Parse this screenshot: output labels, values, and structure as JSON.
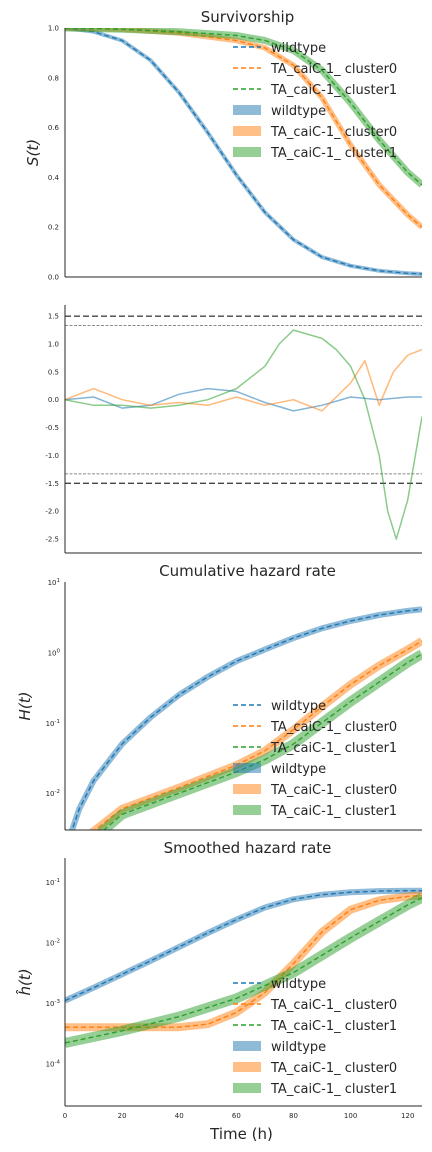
{
  "colors": {
    "wildtype": "#1f77b4",
    "cluster0": "#ff7f0e",
    "cluster1": "#2ca02c",
    "ref_line": "#555555"
  },
  "legend_labels": [
    "wildtype",
    "TA_caiC-1_ cluster0",
    "TA_caiC-1_ cluster1"
  ],
  "chart_data": [
    {
      "type": "line",
      "title": "Survivorship",
      "ylabel": "S(t)",
      "xlim": [
        0,
        125
      ],
      "ylim": [
        0.0,
        1.0
      ],
      "yticks": [
        "0.0",
        "0.2",
        "0.4",
        "0.6",
        "0.8",
        "1.0"
      ],
      "legend": "top-right",
      "series": [
        {
          "name": "wildtype",
          "x": [
            0,
            10,
            20,
            30,
            40,
            50,
            60,
            70,
            80,
            90,
            100,
            110,
            120,
            125
          ],
          "y": [
            1.0,
            0.985,
            0.95,
            0.87,
            0.74,
            0.58,
            0.41,
            0.26,
            0.15,
            0.08,
            0.045,
            0.025,
            0.015,
            0.012
          ]
        },
        {
          "name": "TA_caiC-1_ cluster0",
          "x": [
            0,
            20,
            40,
            60,
            70,
            80,
            90,
            100,
            110,
            120,
            125
          ],
          "y": [
            1.0,
            0.995,
            0.98,
            0.95,
            0.92,
            0.85,
            0.72,
            0.53,
            0.37,
            0.25,
            0.2
          ]
        },
        {
          "name": "TA_caiC-1_ cluster1",
          "x": [
            0,
            20,
            40,
            60,
            70,
            80,
            90,
            100,
            110,
            120,
            125
          ],
          "y": [
            1.0,
            0.995,
            0.985,
            0.97,
            0.95,
            0.91,
            0.83,
            0.7,
            0.55,
            0.42,
            0.37
          ]
        }
      ]
    },
    {
      "type": "line",
      "title": "",
      "ylabel": "",
      "xlim": [
        0,
        125
      ],
      "ylim": [
        -2.75,
        1.7
      ],
      "yticks": [
        "-2.5",
        "-2.0",
        "-1.5",
        "-1.0",
        "-0.5",
        "0.0",
        "0.5",
        "1.0",
        "1.5"
      ],
      "reference_lines": [
        1.5,
        1.33,
        -1.33,
        -1.5
      ],
      "series": [
        {
          "name": "wildtype",
          "x": [
            0,
            10,
            20,
            30,
            40,
            50,
            60,
            70,
            80,
            90,
            100,
            110,
            120,
            125
          ],
          "y": [
            0.0,
            0.05,
            -0.15,
            -0.1,
            0.1,
            0.2,
            0.15,
            -0.05,
            -0.2,
            -0.1,
            0.05,
            0.0,
            0.05,
            0.05
          ]
        },
        {
          "name": "TA_caiC-1_ cluster0",
          "x": [
            0,
            10,
            20,
            30,
            40,
            50,
            60,
            70,
            80,
            90,
            100,
            105,
            110,
            115,
            120,
            125
          ],
          "y": [
            0.0,
            0.2,
            0.0,
            -0.1,
            -0.05,
            -0.1,
            0.05,
            -0.1,
            0.0,
            -0.2,
            0.3,
            0.7,
            -0.1,
            0.5,
            0.8,
            0.9
          ]
        },
        {
          "name": "TA_caiC-1_ cluster1",
          "x": [
            0,
            10,
            20,
            30,
            40,
            50,
            60,
            70,
            75,
            80,
            90,
            95,
            100,
            105,
            110,
            113,
            116,
            120,
            125
          ],
          "y": [
            0.0,
            -0.1,
            -0.1,
            -0.15,
            -0.1,
            0.0,
            0.2,
            0.6,
            1.0,
            1.25,
            1.1,
            0.9,
            0.6,
            0.0,
            -1.0,
            -2.0,
            -2.5,
            -1.8,
            -0.3
          ]
        }
      ]
    },
    {
      "type": "line",
      "title": "Cumulative hazard rate",
      "ylabel": "H(t)",
      "xlim": [
        0,
        125
      ],
      "yscale": "log",
      "ylim": [
        0.003,
        10
      ],
      "yticks": [
        "10^-2",
        "10^-1",
        "10^0",
        "10^1"
      ],
      "legend": "lower-right",
      "series": [
        {
          "name": "wildtype",
          "x": [
            1,
            5,
            10,
            20,
            30,
            40,
            50,
            60,
            70,
            80,
            90,
            100,
            110,
            120,
            125
          ],
          "y": [
            0.002,
            0.006,
            0.015,
            0.05,
            0.12,
            0.25,
            0.45,
            0.75,
            1.1,
            1.6,
            2.2,
            2.8,
            3.4,
            3.9,
            4.1
          ]
        },
        {
          "name": "TA_caiC-1_ cluster0",
          "x": [
            5,
            20,
            40,
            60,
            70,
            80,
            90,
            100,
            110,
            120,
            125
          ],
          "y": [
            0.002,
            0.006,
            0.012,
            0.025,
            0.04,
            0.08,
            0.17,
            0.35,
            0.65,
            1.1,
            1.45
          ]
        },
        {
          "name": "TA_caiC-1_ cluster1",
          "x": [
            5,
            20,
            40,
            60,
            70,
            80,
            90,
            100,
            110,
            120,
            125
          ],
          "y": [
            0.0015,
            0.005,
            0.01,
            0.02,
            0.03,
            0.05,
            0.1,
            0.2,
            0.38,
            0.72,
            0.95
          ]
        }
      ]
    },
    {
      "type": "line",
      "title": "Smoothed hazard rate",
      "ylabel": "ĥ(t)",
      "xlabel": "Time (h)",
      "xlim": [
        0,
        125
      ],
      "xticks": [
        0,
        20,
        40,
        60,
        80,
        100,
        120
      ],
      "yscale": "log",
      "ylim": [
        2e-05,
        0.25
      ],
      "yticks": [
        "10^-4",
        "10^-3",
        "10^-2",
        "10^-1"
      ],
      "legend": "lower-right",
      "series": [
        {
          "name": "wildtype",
          "x": [
            0,
            10,
            20,
            30,
            40,
            50,
            60,
            70,
            80,
            90,
            100,
            110,
            120,
            125
          ],
          "y": [
            0.0011,
            0.0018,
            0.003,
            0.005,
            0.0085,
            0.0145,
            0.024,
            0.038,
            0.052,
            0.062,
            0.068,
            0.071,
            0.072,
            0.072
          ]
        },
        {
          "name": "TA_caiC-1_ cluster0",
          "x": [
            0,
            20,
            40,
            50,
            60,
            70,
            80,
            90,
            100,
            110,
            120,
            125
          ],
          "y": [
            0.0004,
            0.0004,
            0.0004,
            0.00045,
            0.0007,
            0.0015,
            0.0045,
            0.015,
            0.035,
            0.05,
            0.058,
            0.06
          ]
        },
        {
          "name": "TA_caiC-1_ cluster1",
          "x": [
            0,
            20,
            40,
            60,
            80,
            100,
            120,
            125
          ],
          "y": [
            0.00022,
            0.00035,
            0.0006,
            0.0012,
            0.0032,
            0.012,
            0.042,
            0.055
          ]
        }
      ]
    }
  ]
}
